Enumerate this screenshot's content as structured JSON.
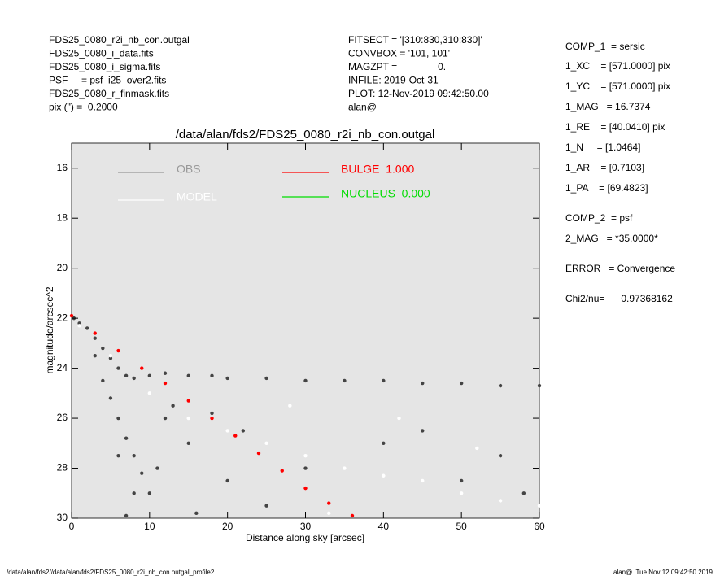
{
  "header": {
    "left": [
      "FDS25_0080_r2i_nb_con.outgal",
      "FDS25_0080_i_data.fits",
      "FDS25_0080_i_sigma.fits",
      "PSF     = psf_i25_over2.fits",
      "FDS25_0080_r_finmask.fits",
      "pix (\") =  0.2000"
    ],
    "center": [
      "FITSECT = '[310:830,310:830]'",
      "CONVBOX = '101, 101'",
      "MAGZPT =               0.",
      "INFILE: 2019-Oct-31",
      "PLOT: 12-Nov-2019 09:42:50.00",
      "alan@"
    ],
    "right": [
      "COMP_1  = sersic",
      "1_XC    = [571.0000] pix",
      "1_YC    = [571.0000] pix",
      "1_MAG   = 16.7374",
      "1_RE    = [40.0410] pix",
      "1_N     = [1.0464]",
      "1_AR    = [0.7103]",
      "1_PA    = [69.4823]",
      "COMP_2  = psf",
      "2_MAG   = *35.0000*",
      "ERROR   = Convergence",
      "Chi2/nu=      0.97368162"
    ]
  },
  "footer": {
    "left": "/data/alan/fds2//data/alan/fds2/FDS25_0080_r2i_nb_con.outgal_profile2",
    "right": "alan@  Tue Nov 12 09:42:50 2019"
  },
  "chart_data": {
    "type": "scatter",
    "title": "/data/alan/fds2/FDS25_0080_r2i_nb_con.outgal",
    "x_label": "Distance along sky [arcsec]",
    "y_label": "magnitude/arcsec^2",
    "xlim": [
      0,
      60
    ],
    "xticks": [
      0,
      10,
      20,
      30,
      40,
      50,
      60
    ],
    "ylim": [
      30,
      15
    ],
    "yticks": [
      16,
      18,
      20,
      22,
      24,
      26,
      28,
      30
    ],
    "background": "#e5e5e5",
    "series": [
      {
        "name": "OBS",
        "color": "#444444",
        "legend_color": "#999999",
        "x": [
          0.3,
          1,
          2,
          3,
          4,
          5,
          6,
          7,
          8,
          10,
          12,
          15,
          18,
          20,
          25,
          30,
          35,
          40,
          45,
          50,
          55,
          60,
          3,
          4,
          5,
          6,
          7,
          8,
          9,
          10,
          6,
          8,
          12,
          15,
          20,
          25,
          13,
          18,
          22,
          30,
          40,
          45,
          50,
          55,
          58,
          7,
          11,
          16
        ],
        "y": [
          22.0,
          22.2,
          22.4,
          22.8,
          23.2,
          23.6,
          24.0,
          24.3,
          24.4,
          24.3,
          24.2,
          24.3,
          24.3,
          24.4,
          24.4,
          24.5,
          24.5,
          24.5,
          24.6,
          24.6,
          24.7,
          24.7,
          23.5,
          24.5,
          25.2,
          26.0,
          26.8,
          27.5,
          28.2,
          29.0,
          27.5,
          29.0,
          26.0,
          27.0,
          28.5,
          29.5,
          25.5,
          25.8,
          26.5,
          28.0,
          27.0,
          26.5,
          28.5,
          27.5,
          29.0,
          29.9,
          28.0,
          29.8
        ]
      },
      {
        "name": "MODEL",
        "color": "#ffffff",
        "legend_color": "#ffffff",
        "x": [
          1,
          5,
          10,
          15,
          20,
          25,
          30,
          35,
          40,
          45,
          50,
          55,
          60,
          28,
          42,
          52,
          33
        ],
        "y": [
          22.3,
          23.5,
          25,
          26,
          26.5,
          27,
          27.5,
          28,
          28.3,
          28.5,
          29,
          29.3,
          29.5,
          25.5,
          26,
          27.2,
          29.8
        ]
      },
      {
        "name": "BULGE  1.000",
        "color": "#ff0000",
        "legend_color": "#ff0000",
        "x": [
          0,
          3,
          6,
          9,
          12,
          15,
          18,
          21,
          24,
          27,
          30,
          33,
          36
        ],
        "y": [
          21.9,
          22.6,
          23.3,
          24.0,
          24.6,
          25.3,
          26.0,
          26.7,
          27.4,
          28.1,
          28.8,
          29.4,
          29.9
        ]
      },
      {
        "name": "NUCLEUS  0.000",
        "color": "#00dd00",
        "legend_color": "#00dd00",
        "x": [],
        "y": []
      }
    ]
  }
}
